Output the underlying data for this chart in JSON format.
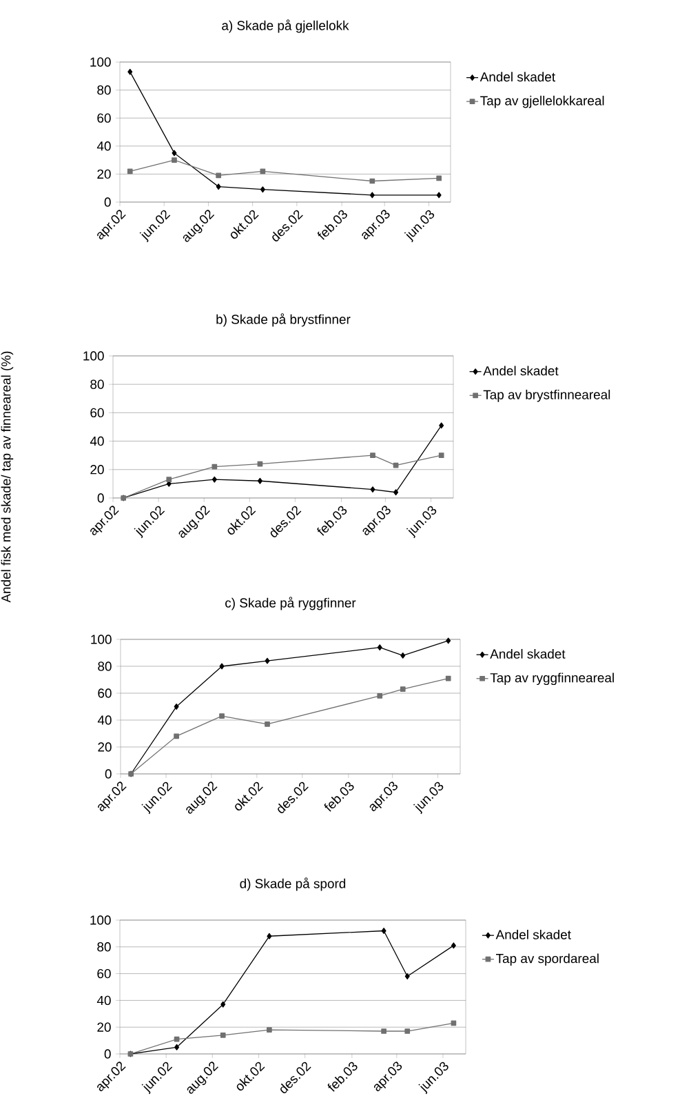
{
  "chart_data": [
    {
      "type": "line",
      "title": "a) Skade på gjellelokk",
      "legend": "right",
      "grid": "y",
      "xlim": [
        "2002-04-01",
        "2003-07-01"
      ],
      "ylim": [
        0,
        100
      ],
      "yticks": [
        0,
        20,
        40,
        60,
        80,
        100
      ],
      "xticks": [
        {
          "value": "2002-04-01",
          "label": "apr.02"
        },
        {
          "value": "2002-06-01",
          "label": "jun.02"
        },
        {
          "value": "2002-08-01",
          "label": "aug.02"
        },
        {
          "value": "2002-10-01",
          "label": "okt.02"
        },
        {
          "value": "2002-12-01",
          "label": "des.02"
        },
        {
          "value": "2003-02-01",
          "label": "feb.03"
        },
        {
          "value": "2003-04-01",
          "label": "apr.03"
        },
        {
          "value": "2003-06-01",
          "label": "jun.03"
        }
      ],
      "x": [
        "2002-04-15",
        "2002-06-15",
        "2002-08-15",
        "2002-10-15",
        "2003-03-15",
        "2003-06-15"
      ],
      "series": [
        {
          "name": "Andel skadet",
          "color": "#000000",
          "marker": "diamond",
          "values": [
            93,
            35,
            11,
            9,
            5,
            5
          ]
        },
        {
          "name": "Tap av gjellelokkareal",
          "color": "#707070",
          "marker": "square",
          "values": [
            22,
            30,
            19,
            22,
            15,
            17
          ]
        }
      ]
    },
    {
      "type": "line",
      "title": "b) Skade på brystfinner",
      "ylabel": "Andel fisk med skade/ tap av finneareal (%)",
      "legend": "right",
      "grid": "y",
      "xlim": [
        "2002-04-01",
        "2003-07-01"
      ],
      "ylim": [
        0,
        100
      ],
      "yticks": [
        0,
        20,
        40,
        60,
        80,
        100
      ],
      "xticks": [
        {
          "value": "2002-04-01",
          "label": "apr.02"
        },
        {
          "value": "2002-06-01",
          "label": "jun.02"
        },
        {
          "value": "2002-08-01",
          "label": "aug.02"
        },
        {
          "value": "2002-10-01",
          "label": "okt.02"
        },
        {
          "value": "2002-12-01",
          "label": "des.02"
        },
        {
          "value": "2003-02-01",
          "label": "feb.03"
        },
        {
          "value": "2003-04-01",
          "label": "apr.03"
        },
        {
          "value": "2003-06-01",
          "label": "jun.03"
        }
      ],
      "x": [
        "2002-04-15",
        "2002-06-15",
        "2002-08-15",
        "2002-10-15",
        "2003-03-15",
        "2003-04-15",
        "2003-06-15"
      ],
      "series": [
        {
          "name": "Andel skadet",
          "color": "#000000",
          "marker": "diamond",
          "values": [
            0,
            10,
            13,
            12,
            6,
            4,
            51
          ]
        },
        {
          "name": "Tap av brystfinneareal",
          "color": "#707070",
          "marker": "square",
          "values": [
            0,
            13,
            22,
            24,
            30,
            23,
            30
          ]
        }
      ]
    },
    {
      "type": "line",
      "title": "c) Skade på ryggfinner",
      "legend": "right",
      "grid": "y",
      "xlim": [
        "2002-04-01",
        "2003-07-01"
      ],
      "ylim": [
        0,
        100
      ],
      "yticks": [
        0,
        20,
        40,
        60,
        80,
        100
      ],
      "xticks": [
        {
          "value": "2002-04-01",
          "label": "apr.02"
        },
        {
          "value": "2002-06-01",
          "label": "jun.02"
        },
        {
          "value": "2002-08-01",
          "label": "aug.02"
        },
        {
          "value": "2002-10-01",
          "label": "okt.02"
        },
        {
          "value": "2002-12-01",
          "label": "des.02"
        },
        {
          "value": "2003-02-01",
          "label": "feb.03"
        },
        {
          "value": "2003-04-01",
          "label": "apr.03"
        },
        {
          "value": "2003-06-01",
          "label": "jun.03"
        }
      ],
      "x": [
        "2002-04-15",
        "2002-06-15",
        "2002-08-15",
        "2002-10-15",
        "2003-03-15",
        "2003-04-15",
        "2003-06-15"
      ],
      "series": [
        {
          "name": "Andel skadet",
          "color": "#000000",
          "marker": "diamond",
          "values": [
            0,
            50,
            80,
            84,
            94,
            88,
            99
          ]
        },
        {
          "name": "Tap av ryggfinneareal",
          "color": "#707070",
          "marker": "square",
          "values": [
            0,
            28,
            43,
            37,
            58,
            63,
            71
          ]
        }
      ]
    },
    {
      "type": "line",
      "title": "d) Skade på spord",
      "legend": "right",
      "grid": "y",
      "xlim": [
        "2002-04-01",
        "2003-07-01"
      ],
      "ylim": [
        0,
        100
      ],
      "yticks": [
        0,
        20,
        40,
        60,
        80,
        100
      ],
      "xticks": [
        {
          "value": "2002-04-01",
          "label": "apr.02"
        },
        {
          "value": "2002-06-01",
          "label": "jun.02"
        },
        {
          "value": "2002-08-01",
          "label": "aug.02"
        },
        {
          "value": "2002-10-01",
          "label": "okt.02"
        },
        {
          "value": "2002-12-01",
          "label": "des.02"
        },
        {
          "value": "2003-02-01",
          "label": "feb.03"
        },
        {
          "value": "2003-04-01",
          "label": "apr.03"
        },
        {
          "value": "2003-06-01",
          "label": "jun.03"
        }
      ],
      "x": [
        "2002-04-15",
        "2002-06-15",
        "2002-08-15",
        "2002-10-15",
        "2003-03-15",
        "2003-04-15",
        "2003-06-15"
      ],
      "series": [
        {
          "name": "Andel skadet",
          "color": "#000000",
          "marker": "diamond",
          "values": [
            0,
            5,
            37,
            88,
            92,
            58,
            81
          ]
        },
        {
          "name": "Tap av spordareal",
          "color": "#707070",
          "marker": "square",
          "values": [
            0,
            11,
            14,
            18,
            17,
            17,
            23
          ]
        }
      ]
    }
  ]
}
